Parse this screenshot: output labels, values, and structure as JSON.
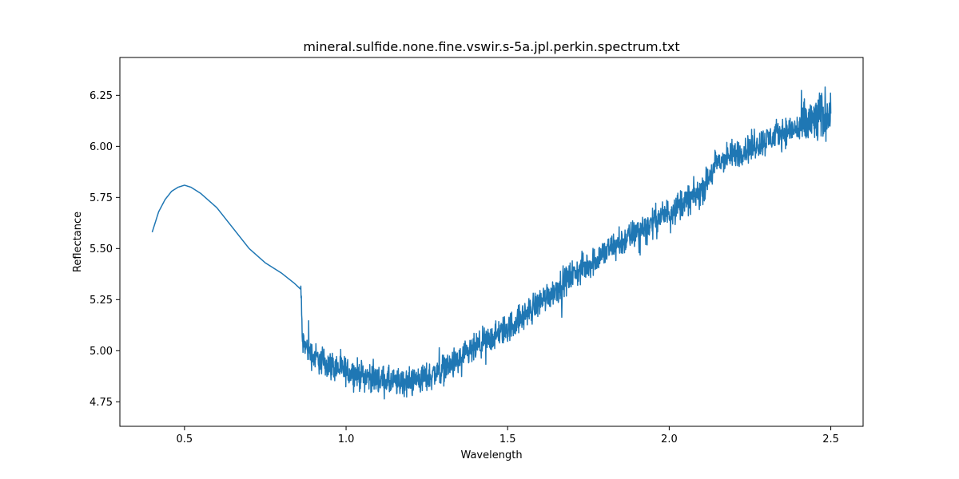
{
  "chart_data": {
    "type": "line",
    "title": "mineral.sulfide.none.fine.vswir.s-5a.jpl.perkin.spectrum.txt",
    "xlabel": "Wavelength",
    "ylabel": "Reflectance",
    "xlim": [
      0.3,
      2.6
    ],
    "ylim": [
      4.63,
      6.435
    ],
    "x_ticks": [
      0.5,
      1.0,
      1.5,
      2.0,
      2.5
    ],
    "x_tick_labels": [
      "0.5",
      "1.0",
      "1.5",
      "2.0",
      "2.5"
    ],
    "y_ticks": [
      4.75,
      5.0,
      5.25,
      5.5,
      5.75,
      6.0,
      6.25
    ],
    "y_tick_labels": [
      "4.75",
      "5.00",
      "5.25",
      "5.50",
      "5.75",
      "6.00",
      "6.25"
    ],
    "grid": false,
    "series": [
      {
        "color": "#1f77b4",
        "anchors": {
          "x": [
            0.4,
            0.42,
            0.44,
            0.46,
            0.48,
            0.5,
            0.52,
            0.55,
            0.6,
            0.65,
            0.7,
            0.75,
            0.8,
            0.84,
            0.86,
            0.865,
            0.9,
            0.95,
            1.0,
            1.05,
            1.1,
            1.15,
            1.2,
            1.25,
            1.3,
            1.35,
            1.4,
            1.45,
            1.5,
            1.55,
            1.6,
            1.65,
            1.7,
            1.75,
            1.8,
            1.85,
            1.9,
            1.95,
            2.0,
            2.05,
            2.1,
            2.15,
            2.2,
            2.25,
            2.3,
            2.35,
            2.4,
            2.45,
            2.5
          ],
          "y": [
            5.58,
            5.68,
            5.74,
            5.78,
            5.8,
            5.81,
            5.8,
            5.77,
            5.7,
            5.6,
            5.5,
            5.43,
            5.38,
            5.33,
            5.3,
            5.04,
            4.97,
            4.93,
            4.9,
            4.88,
            4.86,
            4.84,
            4.85,
            4.87,
            4.91,
            4.95,
            5.01,
            5.06,
            5.11,
            5.17,
            5.24,
            5.3,
            5.37,
            5.42,
            5.48,
            5.53,
            5.58,
            5.63,
            5.68,
            5.73,
            5.78,
            5.92,
            5.96,
            5.99,
            6.03,
            6.07,
            6.09,
            6.12,
            6.18
          ]
        },
        "noise_free_below": 0.86,
        "noise_amplitude": 0.035,
        "points_per_unit": 1200
      }
    ]
  }
}
